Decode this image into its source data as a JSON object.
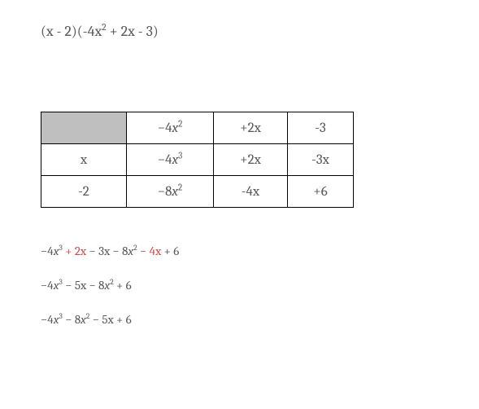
{
  "problem": {
    "lhs_a": "(x - 2)",
    "lhs_b_pre": "(-4x",
    "lhs_b_exp": "2",
    "lhs_b_post": " + 2x - 3)"
  },
  "table": {
    "header": {
      "c1_pre": "−4",
      "c1_var": "x",
      "c1_exp": "2",
      "c2": "+2x",
      "c3": "-3"
    },
    "rows": [
      {
        "label": "x",
        "c1_pre": "−4",
        "c1_var": "x",
        "c1_exp": "3",
        "c2": "+2x",
        "c3": "-3x"
      },
      {
        "label": "-2",
        "c1_pre": "−8",
        "c1_var": "x",
        "c1_exp": "2",
        "c2": "-4x",
        "c3": "+6"
      }
    ]
  },
  "steps": {
    "s1": {
      "p1_pre": "−4",
      "p1_var": "x",
      "p1_exp": "3",
      "p2": " + 2x",
      "p3": " − 3x",
      "p4_mid": " − 8",
      "p4_var": "x",
      "p4_exp": "2",
      "p5": " − 4x",
      "p6": " + 6"
    },
    "s2": {
      "p1_pre": "−4",
      "p1_var": "x",
      "p1_exp": "3",
      "p2": " − 5x − 8",
      "p2_var": "x",
      "p2_exp": "2",
      "p3": " + 6"
    },
    "s3": {
      "p1_pre": "−4",
      "p1_var": "x",
      "p1_exp": "3",
      "p2": " − 8",
      "p2_var": "x",
      "p2_exp": "2",
      "p3": " − 5x + 6"
    }
  },
  "colors": {
    "text": "#595959",
    "highlight": "#c0504d",
    "border": "#000000",
    "shaded": "#bfbfbf",
    "background": "#ffffff"
  }
}
